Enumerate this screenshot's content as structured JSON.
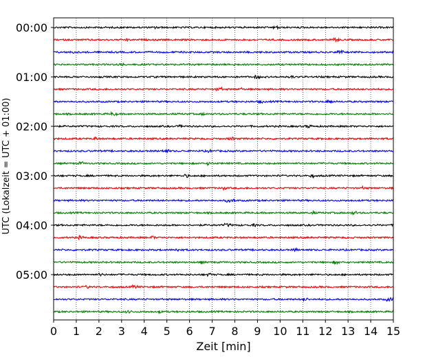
{
  "chart_data": {
    "type": "line",
    "title": "",
    "xlabel": "Zeit  [min]",
    "ylabel": "UTC (Lokalzeit = UTC + 01:00)",
    "xlim": [
      0,
      15
    ],
    "x_ticks": [
      "0",
      "1",
      "2",
      "3",
      "4",
      "5",
      "6",
      "7",
      "8",
      "9",
      "10",
      "11",
      "12",
      "13",
      "14",
      "15"
    ],
    "y_tick_labels": [
      "00:00",
      "01:00",
      "02:00",
      "03:00",
      "04:00",
      "05:00"
    ],
    "trace_start_times": [
      "00:00",
      "00:15",
      "00:30",
      "00:45",
      "01:00",
      "01:15",
      "01:30",
      "01:45",
      "02:00",
      "02:15",
      "02:30",
      "02:45",
      "03:00",
      "03:15",
      "03:30",
      "03:45",
      "04:00",
      "04:15",
      "04:30",
      "04:45",
      "05:00",
      "05:15",
      "05:30",
      "05:45"
    ],
    "trace_colors": [
      "#000000",
      "#ff0000",
      "#0000ff",
      "#008000"
    ],
    "vertical_grid": "dotted",
    "legend": "none"
  }
}
